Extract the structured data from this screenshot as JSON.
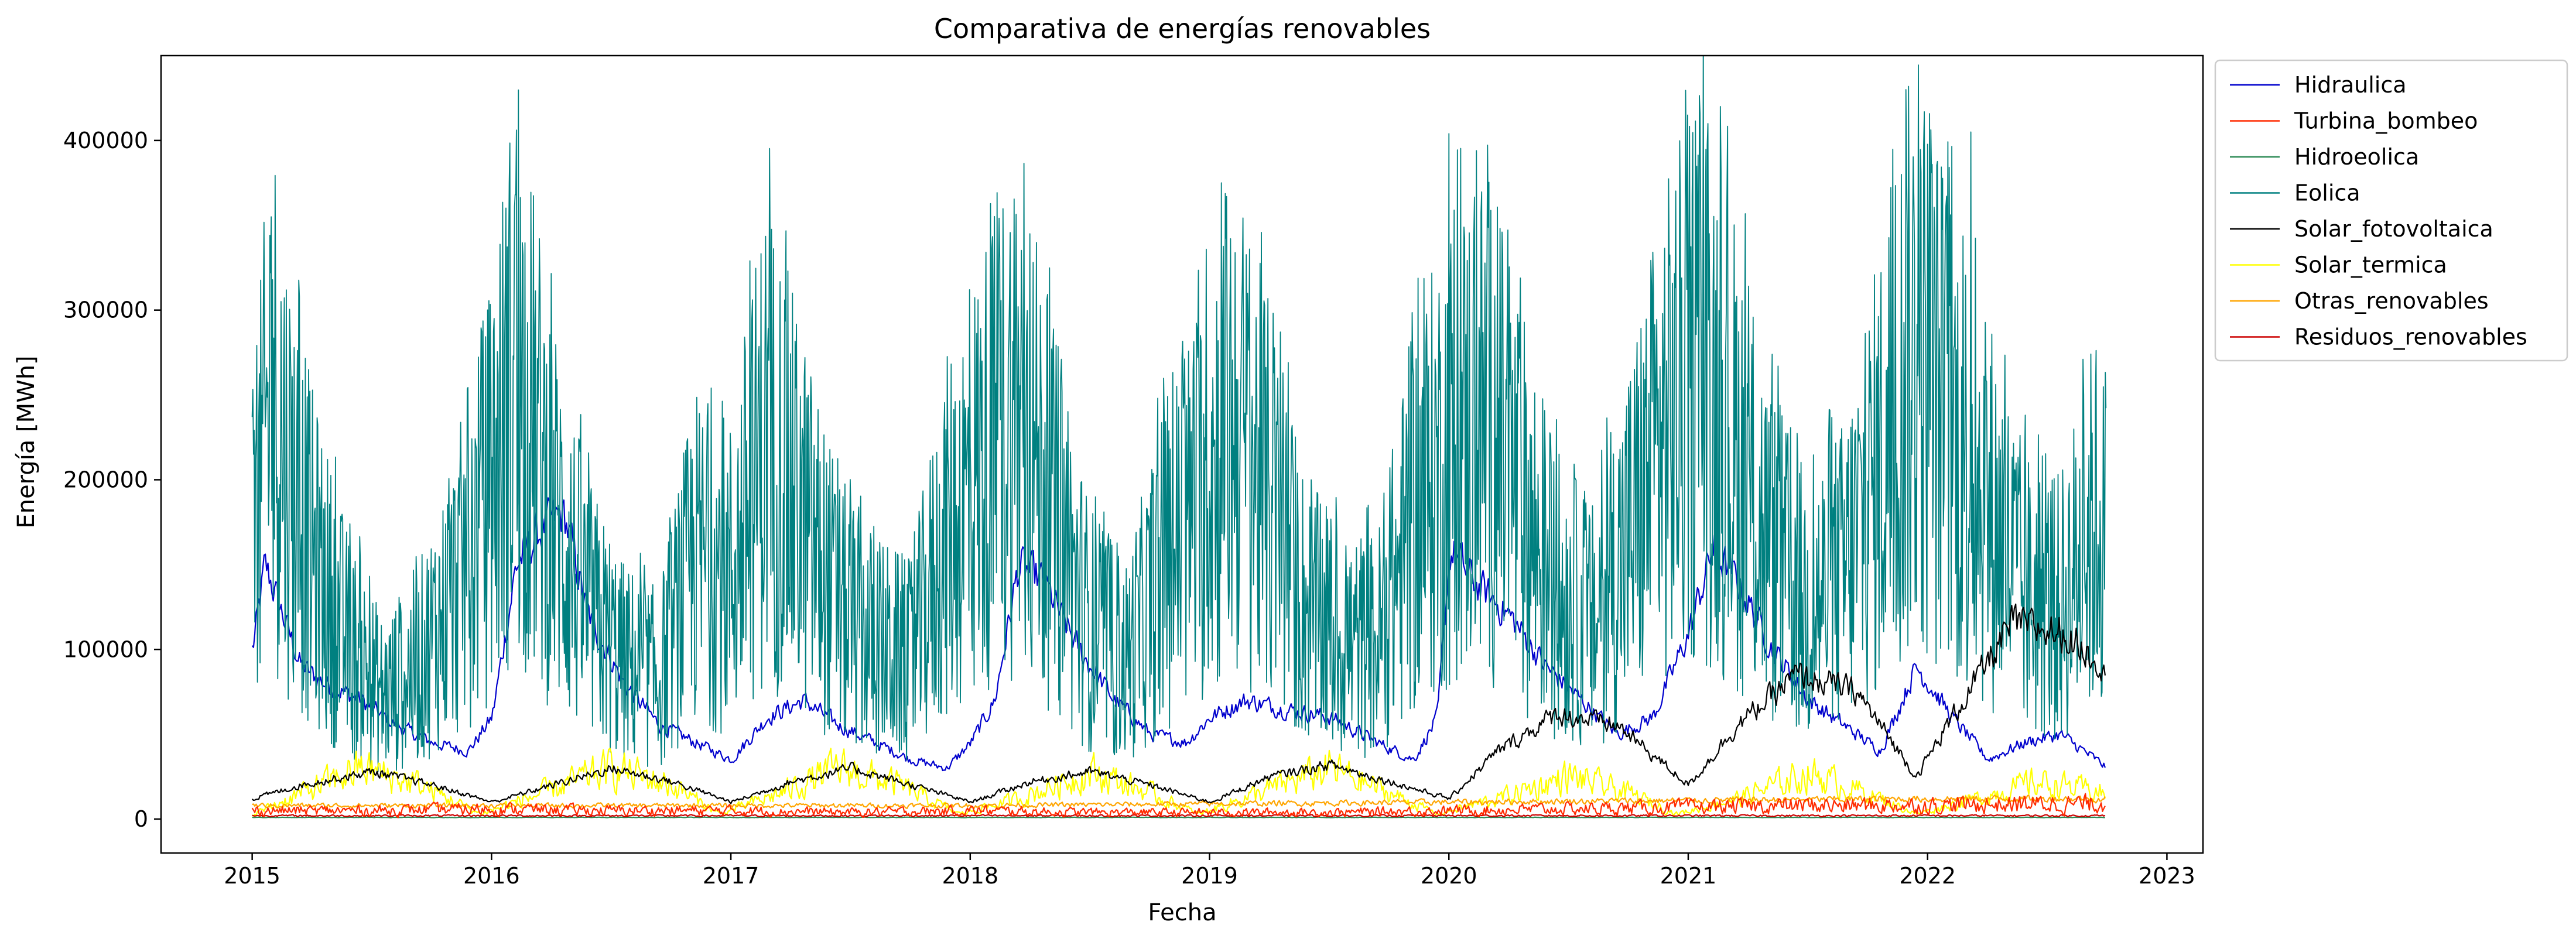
{
  "chart_data": {
    "type": "line",
    "title": "Comparativa de energías renovables",
    "xlabel": "Fecha",
    "ylabel": "Energía [MWh]",
    "xlim": [
      "2014-08-15",
      "2023-02-25"
    ],
    "ylim": [
      -20000,
      450000
    ],
    "x_ticks": [
      "2015",
      "2016",
      "2017",
      "2018",
      "2019",
      "2020",
      "2021",
      "2022",
      "2023"
    ],
    "y_ticks": [
      0,
      100000,
      200000,
      300000,
      400000
    ],
    "y_tick_labels": [
      "0",
      "100000",
      "200000",
      "300000",
      "400000"
    ],
    "grid": false,
    "legend_placement": "outside-upper-right",
    "x_range": [
      "2015-01-01",
      "2022-09-30"
    ],
    "series": [
      {
        "name": "Hidraulica",
        "color": "#0000cd",
        "values": [
          [
            2015.0,
            100000
          ],
          [
            2015.05,
            150000
          ],
          [
            2015.1,
            130000
          ],
          [
            2015.2,
            90000
          ],
          [
            2015.3,
            80000
          ],
          [
            2015.45,
            70000
          ],
          [
            2015.6,
            55000
          ],
          [
            2015.75,
            45000
          ],
          [
            2015.9,
            40000
          ],
          [
            2016.0,
            60000
          ],
          [
            2016.1,
            150000
          ],
          [
            2016.2,
            170000
          ],
          [
            2016.3,
            180000
          ],
          [
            2016.4,
            120000
          ],
          [
            2016.55,
            80000
          ],
          [
            2016.7,
            55000
          ],
          [
            2016.85,
            45000
          ],
          [
            2017.0,
            35000
          ],
          [
            2017.15,
            60000
          ],
          [
            2017.3,
            70000
          ],
          [
            2017.45,
            55000
          ],
          [
            2017.6,
            45000
          ],
          [
            2017.75,
            35000
          ],
          [
            2017.9,
            30000
          ],
          [
            2018.0,
            45000
          ],
          [
            2018.1,
            70000
          ],
          [
            2018.2,
            150000
          ],
          [
            2018.3,
            140000
          ],
          [
            2018.45,
            100000
          ],
          [
            2018.6,
            70000
          ],
          [
            2018.75,
            50000
          ],
          [
            2018.9,
            45000
          ],
          [
            2019.0,
            60000
          ],
          [
            2019.15,
            70000
          ],
          [
            2019.3,
            65000
          ],
          [
            2019.5,
            60000
          ],
          [
            2019.7,
            45000
          ],
          [
            2019.85,
            35000
          ],
          [
            2019.95,
            60000
          ],
          [
            2020.0,
            160000
          ],
          [
            2020.1,
            140000
          ],
          [
            2020.25,
            120000
          ],
          [
            2020.4,
            90000
          ],
          [
            2020.55,
            70000
          ],
          [
            2020.7,
            50000
          ],
          [
            2020.85,
            60000
          ],
          [
            2021.0,
            110000
          ],
          [
            2021.1,
            160000
          ],
          [
            2021.2,
            140000
          ],
          [
            2021.35,
            100000
          ],
          [
            2021.5,
            70000
          ],
          [
            2021.65,
            55000
          ],
          [
            2021.8,
            40000
          ],
          [
            2021.95,
            90000
          ],
          [
            2022.1,
            60000
          ],
          [
            2022.25,
            35000
          ],
          [
            2022.4,
            45000
          ],
          [
            2022.55,
            50000
          ],
          [
            2022.7,
            35000
          ],
          [
            2022.75,
            30000
          ]
        ]
      },
      {
        "name": "Turbina_bombeo",
        "color": "#ff2a00",
        "values": [
          [
            2015.0,
            5000
          ],
          [
            2015.5,
            5000
          ],
          [
            2016.0,
            6000
          ],
          [
            2016.5,
            5000
          ],
          [
            2017.0,
            5000
          ],
          [
            2017.5,
            4000
          ],
          [
            2018.0,
            5000
          ],
          [
            2018.5,
            4000
          ],
          [
            2019.0,
            4000
          ],
          [
            2019.5,
            4000
          ],
          [
            2020.0,
            5000
          ],
          [
            2020.5,
            6000
          ],
          [
            2021.0,
            7000
          ],
          [
            2021.5,
            8000
          ],
          [
            2022.0,
            8000
          ],
          [
            2022.5,
            9000
          ],
          [
            2022.75,
            9000
          ]
        ]
      },
      {
        "name": "Hidroeolica",
        "color": "#2e8b57",
        "values": [
          [
            2015.0,
            1000
          ],
          [
            2016.0,
            1000
          ],
          [
            2017.0,
            1000
          ],
          [
            2018.0,
            1000
          ],
          [
            2019.0,
            1000
          ],
          [
            2020.0,
            1000
          ],
          [
            2021.0,
            1000
          ],
          [
            2022.0,
            1000
          ],
          [
            2022.75,
            1000
          ]
        ]
      },
      {
        "name": "Eolica",
        "color": "#008080",
        "values": [
          [
            2015.0,
            140000
          ],
          [
            2015.08,
            250000
          ],
          [
            2015.15,
            200000
          ],
          [
            2015.25,
            150000
          ],
          [
            2015.4,
            100000
          ],
          [
            2015.55,
            70000
          ],
          [
            2015.7,
            90000
          ],
          [
            2015.85,
            130000
          ],
          [
            2016.0,
            190000
          ],
          [
            2016.1,
            260000
          ],
          [
            2016.25,
            180000
          ],
          [
            2016.4,
            120000
          ],
          [
            2016.55,
            90000
          ],
          [
            2016.7,
            80000
          ],
          [
            2016.85,
            150000
          ],
          [
            2017.0,
            140000
          ],
          [
            2017.15,
            220000
          ],
          [
            2017.3,
            170000
          ],
          [
            2017.45,
            120000
          ],
          [
            2017.6,
            100000
          ],
          [
            2017.75,
            90000
          ],
          [
            2017.9,
            160000
          ],
          [
            2018.05,
            200000
          ],
          [
            2018.2,
            240000
          ],
          [
            2018.35,
            170000
          ],
          [
            2018.5,
            110000
          ],
          [
            2018.65,
            90000
          ],
          [
            2018.8,
            140000
          ],
          [
            2018.95,
            180000
          ],
          [
            2019.1,
            230000
          ],
          [
            2019.25,
            180000
          ],
          [
            2019.4,
            120000
          ],
          [
            2019.55,
            100000
          ],
          [
            2019.7,
            100000
          ],
          [
            2019.85,
            170000
          ],
          [
            2020.0,
            210000
          ],
          [
            2020.15,
            230000
          ],
          [
            2020.3,
            180000
          ],
          [
            2020.45,
            130000
          ],
          [
            2020.6,
            110000
          ],
          [
            2020.75,
            160000
          ],
          [
            2020.9,
            220000
          ],
          [
            2021.05,
            260000
          ],
          [
            2021.2,
            210000
          ],
          [
            2021.35,
            150000
          ],
          [
            2021.5,
            120000
          ],
          [
            2021.65,
            140000
          ],
          [
            2021.8,
            200000
          ],
          [
            2021.95,
            270000
          ],
          [
            2022.1,
            220000
          ],
          [
            2022.25,
            180000
          ],
          [
            2022.4,
            130000
          ],
          [
            2022.55,
            120000
          ],
          [
            2022.7,
            170000
          ],
          [
            2022.75,
            160000
          ]
        ],
        "peaks": [
          [
            2015.08,
            355000
          ],
          [
            2016.1,
            368000
          ],
          [
            2018.25,
            345000
          ],
          [
            2019.05,
            375000
          ],
          [
            2020.0,
            404000
          ],
          [
            2021.05,
            416000
          ],
          [
            2021.91,
            430000
          ],
          [
            2022.18,
            405000
          ]
        ]
      },
      {
        "name": "Solar_fotovoltaica",
        "color": "#000000",
        "values": [
          [
            2015.0,
            12000
          ],
          [
            2015.2,
            20000
          ],
          [
            2015.5,
            28000
          ],
          [
            2015.75,
            20000
          ],
          [
            2016.0,
            10000
          ],
          [
            2016.25,
            20000
          ],
          [
            2016.5,
            30000
          ],
          [
            2016.75,
            22000
          ],
          [
            2017.0,
            10000
          ],
          [
            2017.25,
            22000
          ],
          [
            2017.5,
            30000
          ],
          [
            2017.75,
            20000
          ],
          [
            2018.0,
            10000
          ],
          [
            2018.25,
            22000
          ],
          [
            2018.5,
            28000
          ],
          [
            2018.75,
            20000
          ],
          [
            2019.0,
            10000
          ],
          [
            2019.25,
            25000
          ],
          [
            2019.5,
            32000
          ],
          [
            2019.75,
            22000
          ],
          [
            2020.0,
            12000
          ],
          [
            2020.2,
            40000
          ],
          [
            2020.45,
            62000
          ],
          [
            2020.7,
            55000
          ],
          [
            2021.0,
            20000
          ],
          [
            2021.2,
            55000
          ],
          [
            2021.45,
            85000
          ],
          [
            2021.7,
            75000
          ],
          [
            2021.95,
            25000
          ],
          [
            2022.1,
            60000
          ],
          [
            2022.35,
            115000
          ],
          [
            2022.55,
            110000
          ],
          [
            2022.75,
            90000
          ]
        ]
      },
      {
        "name": "Solar_termica",
        "color": "#ffff00",
        "values": [
          [
            2015.0,
            3000
          ],
          [
            2015.2,
            15000
          ],
          [
            2015.45,
            30000
          ],
          [
            2015.7,
            20000
          ],
          [
            2015.95,
            3000
          ],
          [
            2016.2,
            15000
          ],
          [
            2016.5,
            30000
          ],
          [
            2016.75,
            20000
          ],
          [
            2016.95,
            3000
          ],
          [
            2017.2,
            15000
          ],
          [
            2017.45,
            30000
          ],
          [
            2017.7,
            20000
          ],
          [
            2017.95,
            3000
          ],
          [
            2018.2,
            12000
          ],
          [
            2018.5,
            28000
          ],
          [
            2018.75,
            15000
          ],
          [
            2018.95,
            3000
          ],
          [
            2019.2,
            15000
          ],
          [
            2019.5,
            30000
          ],
          [
            2019.75,
            15000
          ],
          [
            2019.95,
            3000
          ],
          [
            2020.2,
            12000
          ],
          [
            2020.5,
            25000
          ],
          [
            2020.75,
            15000
          ],
          [
            2020.95,
            3000
          ],
          [
            2021.2,
            12000
          ],
          [
            2021.5,
            27000
          ],
          [
            2021.75,
            15000
          ],
          [
            2021.95,
            3000
          ],
          [
            2022.2,
            12000
          ],
          [
            2022.45,
            22000
          ],
          [
            2022.75,
            15000
          ]
        ]
      },
      {
        "name": "Otras_renovables",
        "color": "#ffa500",
        "values": [
          [
            2015.0,
            8000
          ],
          [
            2016.0,
            8000
          ],
          [
            2017.0,
            8000
          ],
          [
            2018.0,
            8000
          ],
          [
            2019.0,
            9000
          ],
          [
            2020.0,
            10000
          ],
          [
            2021.0,
            11000
          ],
          [
            2022.0,
            12000
          ],
          [
            2022.75,
            12000
          ]
        ]
      },
      {
        "name": "Residuos_renovables",
        "color": "#cc0000",
        "values": [
          [
            2015.0,
            2000
          ],
          [
            2016.0,
            2000
          ],
          [
            2017.0,
            2000
          ],
          [
            2018.0,
            2000
          ],
          [
            2019.0,
            2000
          ],
          [
            2020.0,
            2000
          ],
          [
            2021.0,
            2000
          ],
          [
            2022.0,
            2000
          ],
          [
            2022.75,
            2000
          ]
        ]
      }
    ]
  }
}
